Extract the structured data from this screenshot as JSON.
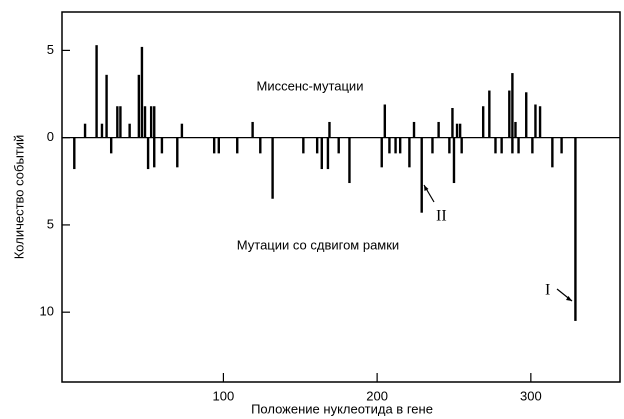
{
  "chart_data": {
    "type": "bar",
    "xlabel": "Положение нуклеотида в гене",
    "ylabel": "Количество событий",
    "xlim": [
      -5,
      358
    ],
    "xticks": [
      100,
      200,
      300
    ],
    "ylim": [
      -14,
      7.2
    ],
    "yticks": [
      {
        "value": 5,
        "label": "5"
      },
      0,
      {
        "value": -5,
        "label": "5"
      },
      {
        "value": -10,
        "label": "10"
      }
    ],
    "series": [
      {
        "name": "Миссенс-мутации",
        "color": "#000000",
        "x": [
          10,
          17.5,
          21,
          24,
          31,
          33,
          39,
          45,
          47,
          49,
          53,
          55,
          73,
          119,
          169,
          205,
          224,
          240,
          249,
          252,
          254,
          269,
          273,
          286,
          288,
          290,
          297,
          303,
          306
        ],
        "values": [
          0.8,
          5.3,
          0.8,
          3.6,
          1.8,
          1.8,
          0.8,
          3.6,
          5.2,
          1.8,
          1.8,
          1.8,
          0.8,
          0.9,
          0.9,
          1.9,
          0.9,
          0.9,
          1.7,
          0.8,
          0.8,
          1.8,
          2.7,
          2.7,
          3.7,
          0.9,
          2.6,
          1.9,
          1.8
        ]
      },
      {
        "name": "Мутации со сдвигом рамки",
        "color": "#000000",
        "x": [
          3,
          27,
          51,
          55,
          60,
          70,
          94,
          97,
          109,
          124,
          132,
          152,
          161,
          164,
          168,
          175,
          182,
          203,
          208,
          212,
          215,
          221,
          229,
          236,
          247,
          250,
          255,
          277,
          281,
          288,
          292,
          301,
          314,
          320,
          329
        ],
        "values": [
          -1.8,
          -0.9,
          -1.8,
          -1.7,
          -0.9,
          -1.7,
          -0.9,
          -0.9,
          -0.9,
          -0.9,
          -3.5,
          -0.9,
          -0.9,
          -1.8,
          -1.8,
          -0.9,
          -2.6,
          -1.7,
          -0.9,
          -0.9,
          -0.9,
          -1.7,
          -4.3,
          -0.9,
          -0.9,
          -2.6,
          -0.9,
          -0.9,
          -0.9,
          -0.9,
          -0.9,
          -0.9,
          -1.7,
          -0.9,
          -10.5
        ]
      }
    ],
    "annotations": [
      "II",
      "I"
    ]
  }
}
